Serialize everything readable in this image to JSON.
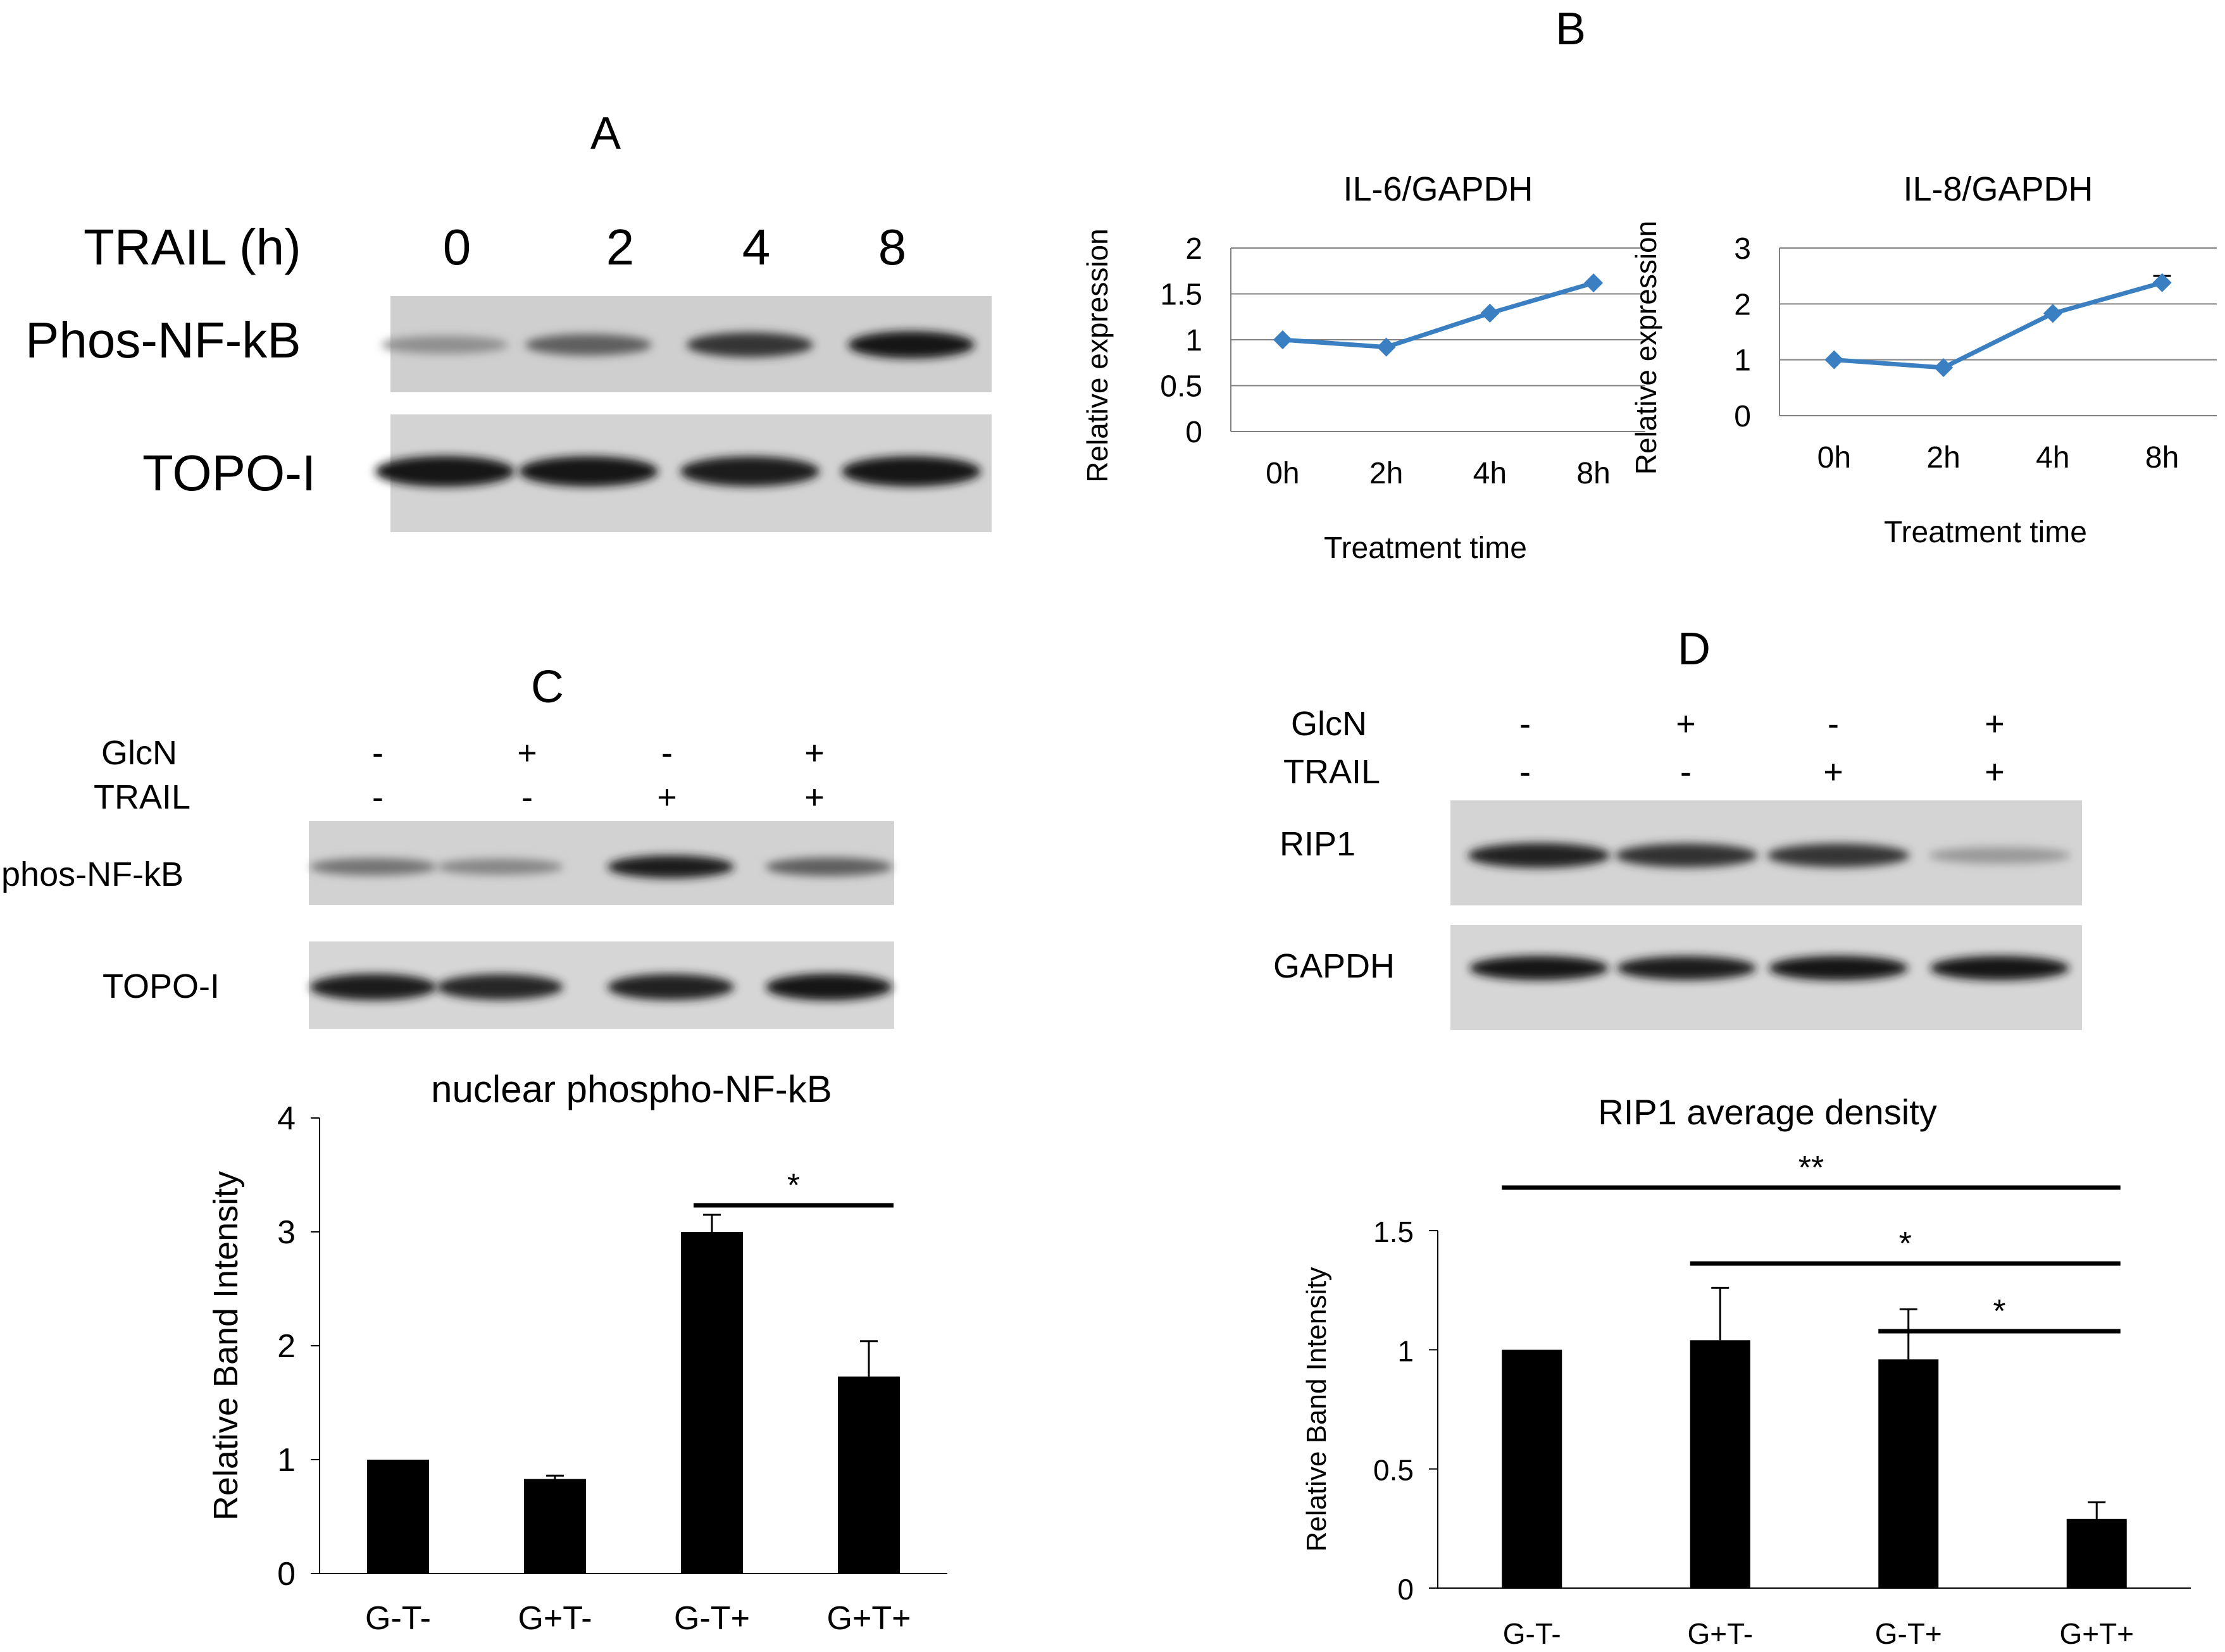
{
  "panels": {
    "A": {
      "letter": "A",
      "time_label": "TRAIL (h)",
      "times": [
        "0",
        "2",
        "4",
        "8"
      ],
      "rows": [
        "Phos-NF-kB",
        "TOPO-I"
      ],
      "band_intensity": {
        "Phos-NF-kB": [
          0.3,
          0.55,
          0.78,
          0.95
        ],
        "TOPO-I": [
          0.95,
          0.92,
          0.9,
          0.92
        ]
      }
    },
    "B": {
      "letter": "B"
    },
    "C": {
      "letter": "C",
      "row_labels": [
        "GlcN",
        "TRAIL"
      ],
      "glcn": [
        "-",
        "+",
        "-",
        "+"
      ],
      "trail": [
        "-",
        "-",
        "+",
        "+"
      ],
      "blot_rows": [
        "phos-NF-kB",
        "TOPO-I"
      ],
      "band_intensity": {
        "phos-NF-kB": [
          0.45,
          0.35,
          0.9,
          0.55
        ],
        "TOPO-I": [
          0.9,
          0.85,
          0.88,
          0.92
        ]
      }
    },
    "D": {
      "letter": "D",
      "row_labels": [
        "GlcN",
        "TRAIL"
      ],
      "glcn": [
        "-",
        "+",
        "-",
        "+"
      ],
      "trail": [
        "-",
        "-",
        "+",
        "+"
      ],
      "blot_rows": [
        "RIP1",
        "GAPDH"
      ],
      "band_intensity": {
        "RIP1": [
          0.88,
          0.8,
          0.78,
          0.25
        ],
        "GAPDH": [
          0.92,
          0.9,
          0.94,
          0.92
        ]
      }
    }
  },
  "colors": {
    "line": "#3a7fc1",
    "bar": "#000000",
    "grid": "#808080",
    "text": "#000000"
  },
  "chart_data": [
    {
      "type": "line",
      "title": "IL-6/GAPDH",
      "xlabel": "Treatment time",
      "ylabel": "Relative expression",
      "categories": [
        "0h",
        "2h",
        "4h",
        "8h"
      ],
      "values": [
        1.0,
        0.92,
        1.29,
        1.62
      ],
      "ylim": [
        0,
        2
      ],
      "yticks": [
        "0",
        "0.5",
        "1",
        "1.5",
        "2"
      ],
      "grid": true
    },
    {
      "type": "line",
      "title": "IL-8/GAPDH",
      "xlabel": "Treatment time",
      "ylabel": "Relative expression",
      "categories": [
        "0h",
        "2h",
        "4h",
        "8h"
      ],
      "values": [
        1.0,
        0.86,
        1.83,
        2.38
      ],
      "error": [
        0,
        0,
        0,
        0.12
      ],
      "ylim": [
        0,
        3
      ],
      "yticks": [
        "0",
        "1",
        "2",
        "3"
      ],
      "grid": true
    },
    {
      "type": "bar",
      "title": "nuclear phospho-NF-kB",
      "ylabel": "Relative Band Intensity",
      "categories": [
        "G-T-",
        "G+T-",
        "G-T+",
        "G+T+"
      ],
      "values": [
        1.0,
        0.83,
        3.0,
        1.73
      ],
      "error": [
        0,
        0.03,
        0.15,
        0.31
      ],
      "ylim": [
        0,
        4
      ],
      "yticks": [
        "0",
        "1",
        "2",
        "3",
        "4"
      ],
      "significance": [
        {
          "from": 2,
          "to": 3,
          "label": "*"
        }
      ]
    },
    {
      "type": "bar",
      "title": "RIP1 average density",
      "ylabel": "Relative Band Intensity",
      "categories": [
        "G-T-",
        "G+T-",
        "G-T+",
        "G+T+"
      ],
      "values": [
        1.0,
        1.04,
        0.96,
        0.29
      ],
      "error": [
        0,
        0.22,
        0.21,
        0.07
      ],
      "ylim": [
        0,
        1.5
      ],
      "yticks": [
        "0",
        "0.5",
        "1",
        "1.5"
      ],
      "significance": [
        {
          "from": 0,
          "to": 3,
          "label": "**"
        },
        {
          "from": 1,
          "to": 3,
          "label": "*"
        },
        {
          "from": 2,
          "to": 3,
          "label": "*"
        }
      ]
    }
  ]
}
